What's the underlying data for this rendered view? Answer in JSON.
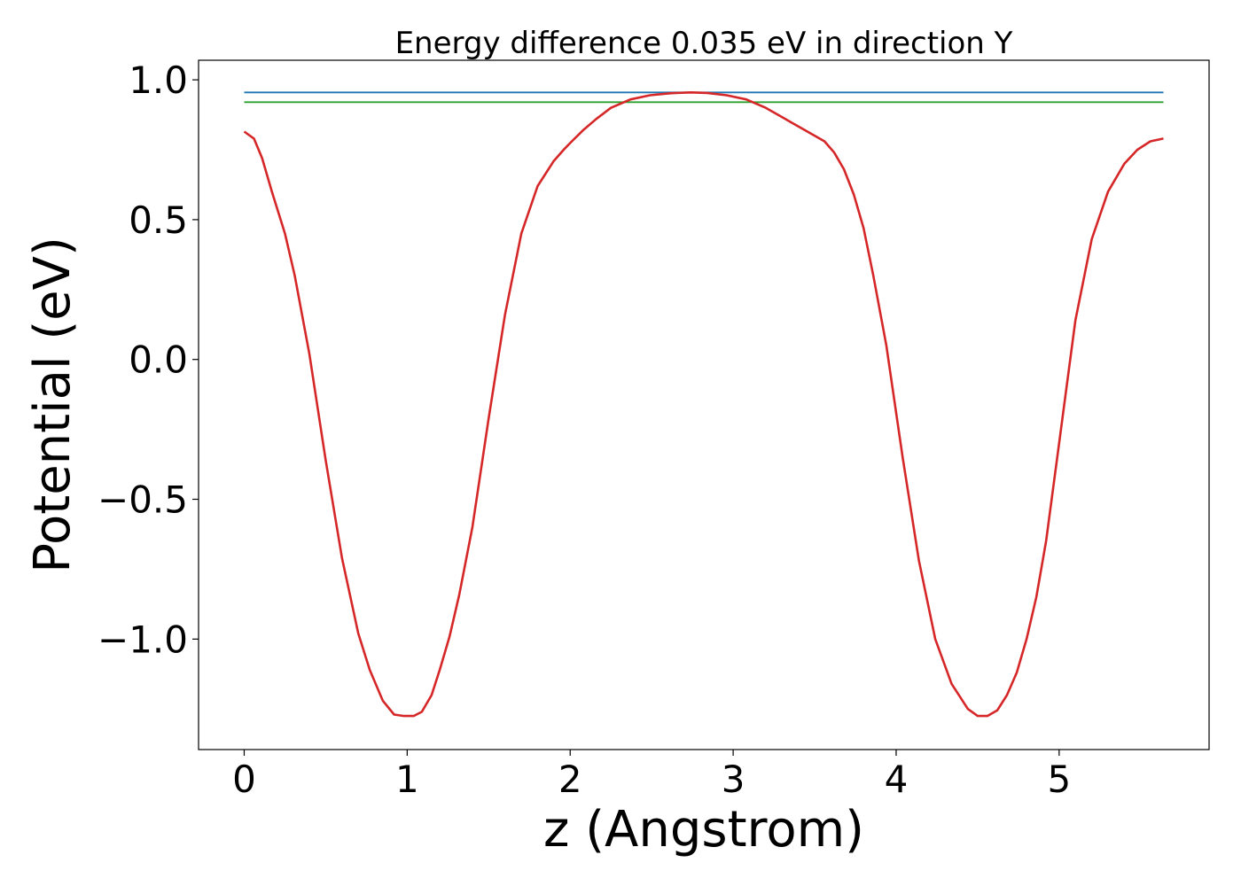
{
  "chart_data": {
    "type": "line",
    "title": "Energy difference 0.035 eV in direction Y",
    "xlabel": "z (Angstrom)",
    "ylabel": "Potential (eV)",
    "xlim": [
      -0.28,
      5.92
    ],
    "ylim": [
      -1.395,
      1.07
    ],
    "xticks": [
      0,
      1,
      2,
      3,
      4,
      5
    ],
    "xtick_labels": [
      "0",
      "1",
      "2",
      "3",
      "4",
      "5"
    ],
    "yticks": [
      -1.0,
      -0.5,
      0.0,
      0.5,
      1.0
    ],
    "ytick_labels": [
      "−1.0",
      "−0.5",
      "0.0",
      "0.5",
      "1.0"
    ],
    "grid": false,
    "series": [
      {
        "color": "#1f77b4",
        "x": [
          0,
          5.64
        ],
        "y": [
          0.955,
          0.955
        ]
      },
      {
        "color": "#2ca02c",
        "x": [
          0,
          5.64
        ],
        "y": [
          0.92,
          0.92
        ]
      },
      {
        "color": "#d62728",
        "x": [
          0.0,
          0.06,
          0.11,
          0.17,
          0.25,
          0.31,
          0.4,
          0.5,
          0.6,
          0.7,
          0.77,
          0.85,
          0.92,
          0.98,
          1.04,
          1.09,
          1.15,
          1.2,
          1.26,
          1.32,
          1.4,
          1.5,
          1.6,
          1.7,
          1.8,
          1.9,
          1.96,
          2.01,
          2.08,
          2.16,
          2.25,
          2.37,
          2.49,
          2.62,
          2.74,
          2.84,
          2.96,
          3.08,
          3.2,
          3.32,
          3.44,
          3.56,
          3.62,
          3.68,
          3.74,
          3.8,
          3.86,
          3.94,
          4.04,
          4.14,
          4.24,
          4.34,
          4.44,
          4.5,
          4.56,
          4.62,
          4.68,
          4.74,
          4.8,
          4.86,
          4.92,
          5.0,
          5.1,
          5.2,
          5.3,
          5.4,
          5.48,
          5.56,
          5.64
        ],
        "y": [
          0.815,
          0.79,
          0.72,
          0.6,
          0.45,
          0.3,
          0.02,
          -0.36,
          -0.71,
          -0.98,
          -1.11,
          -1.22,
          -1.27,
          -1.275,
          -1.275,
          -1.26,
          -1.2,
          -1.11,
          -0.99,
          -0.84,
          -0.6,
          -0.21,
          0.16,
          0.45,
          0.62,
          0.71,
          0.75,
          0.78,
          0.82,
          0.86,
          0.9,
          0.93,
          0.945,
          0.952,
          0.955,
          0.953,
          0.945,
          0.93,
          0.9,
          0.86,
          0.82,
          0.78,
          0.74,
          0.68,
          0.59,
          0.47,
          0.3,
          0.05,
          -0.35,
          -0.72,
          -1.0,
          -1.16,
          -1.25,
          -1.275,
          -1.275,
          -1.255,
          -1.2,
          -1.12,
          -1.0,
          -0.85,
          -0.65,
          -0.3,
          0.14,
          0.43,
          0.6,
          0.7,
          0.75,
          0.78,
          0.79
        ]
      }
    ]
  }
}
